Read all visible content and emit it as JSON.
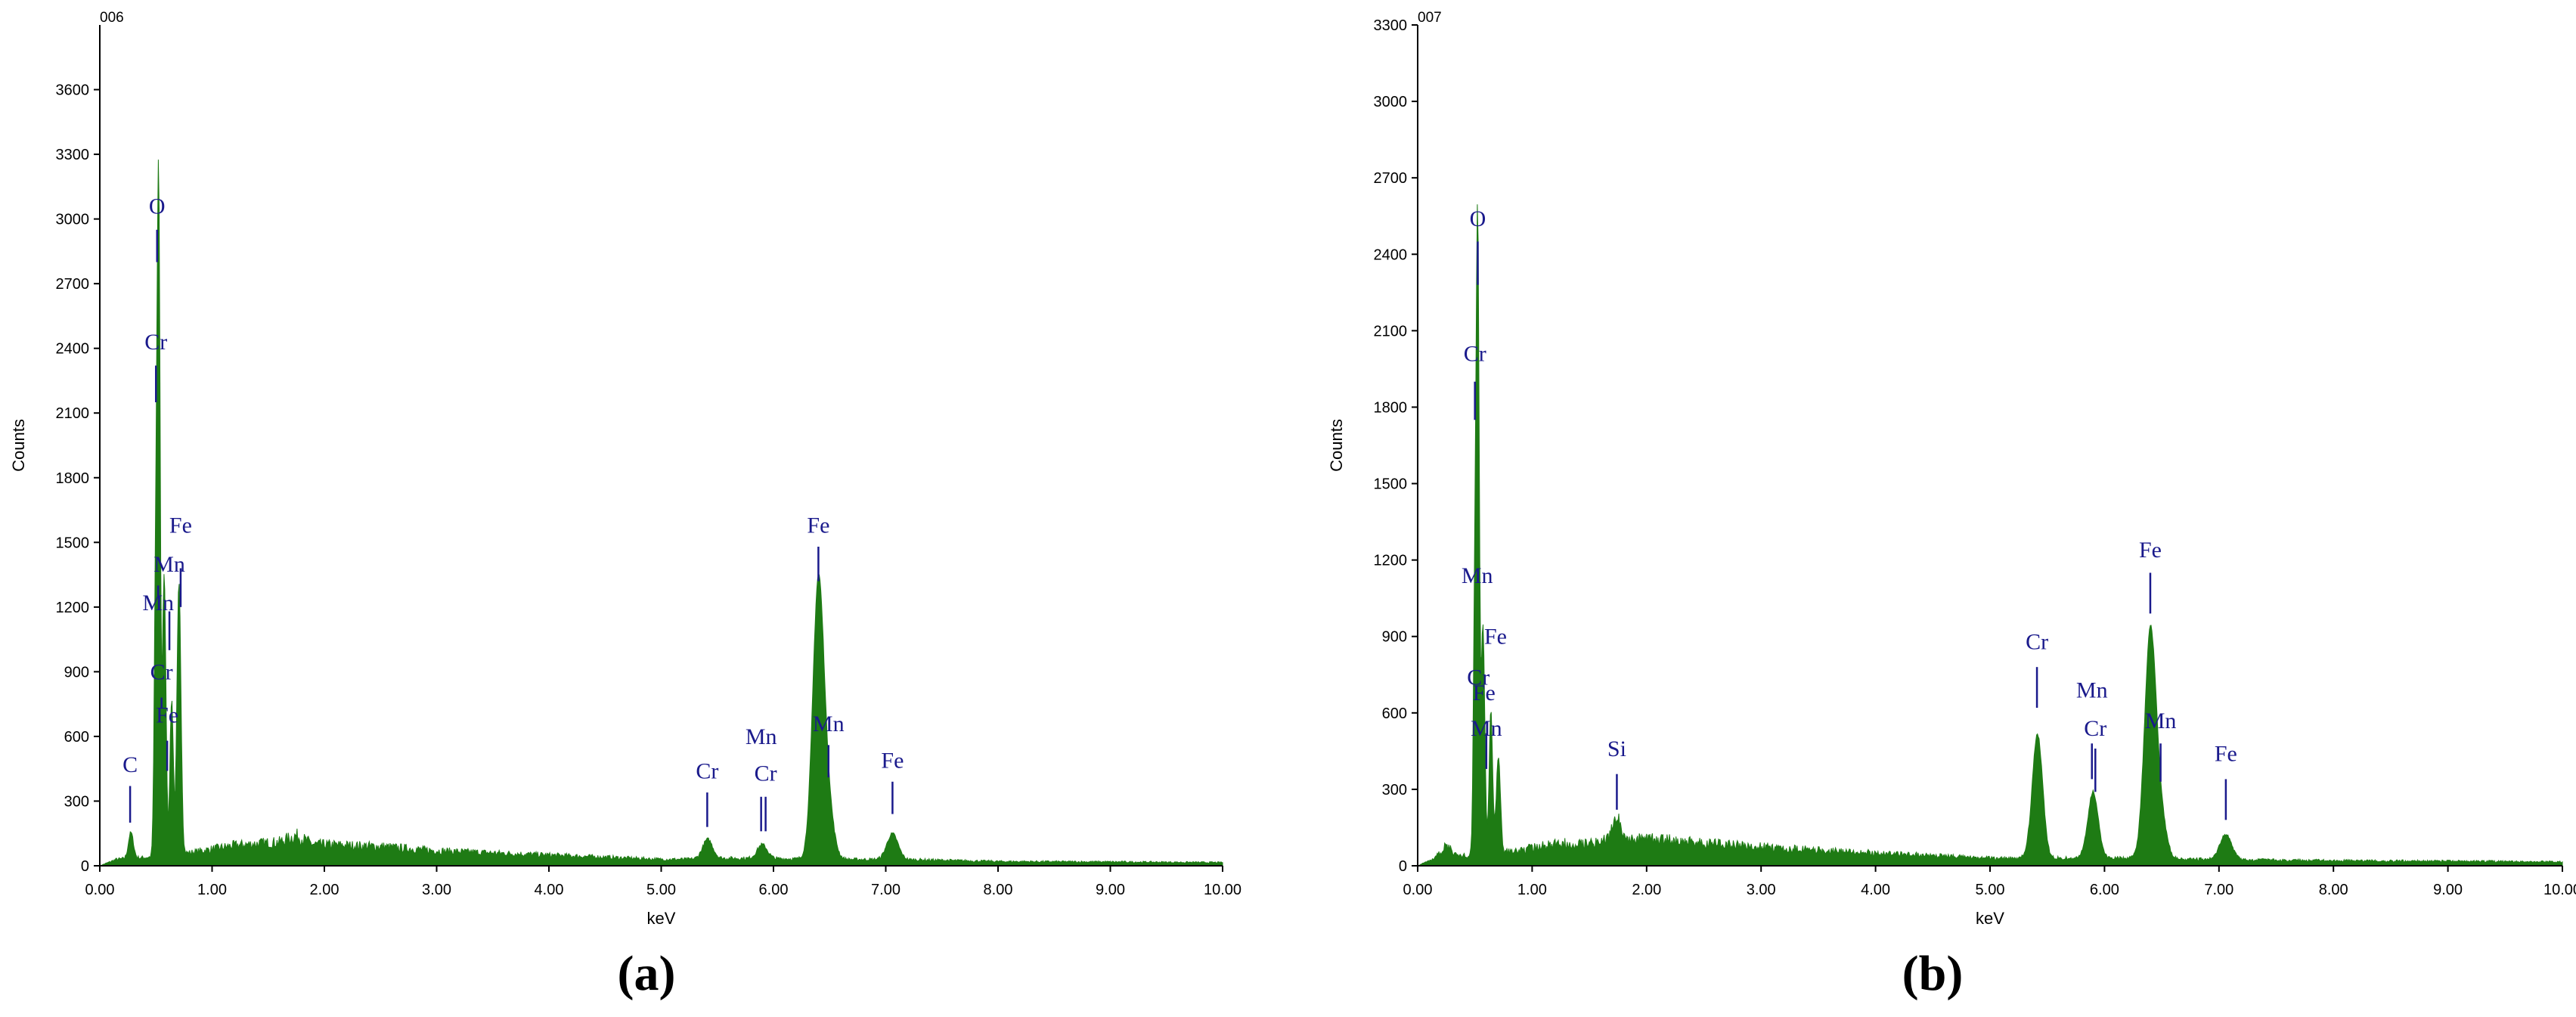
{
  "chart_data": [
    {
      "type": "area",
      "panel_label": "(a)",
      "spectrum_id": "006",
      "xlabel": "keV",
      "ylabel": "Counts",
      "xlim": [
        0,
        10
      ],
      "ylim": [
        0,
        3900
      ],
      "x_ticks": [
        "0.00",
        "1.00",
        "2.00",
        "3.00",
        "4.00",
        "5.00",
        "6.00",
        "7.00",
        "8.00",
        "9.00",
        "10.00"
      ],
      "y_ticks": [
        "0",
        "300",
        "600",
        "900",
        "1200",
        "1500",
        "1800",
        "2100",
        "2400",
        "2700",
        "3000",
        "3300",
        "3600"
      ],
      "color": "#1e7b14",
      "background": [
        [
          0.0,
          0
        ],
        [
          0.15,
          30
        ],
        [
          0.3,
          35
        ],
        [
          0.45,
          40
        ],
        [
          0.8,
          60
        ],
        [
          1.2,
          95
        ],
        [
          1.6,
          110
        ],
        [
          1.75,
          140
        ],
        [
          1.9,
          100
        ],
        [
          2.5,
          90
        ],
        [
          3.0,
          70
        ],
        [
          3.5,
          60
        ],
        [
          4.0,
          50
        ],
        [
          4.5,
          40
        ],
        [
          5.0,
          30
        ],
        [
          5.2,
          30
        ],
        [
          5.6,
          35
        ],
        [
          6.2,
          32
        ],
        [
          6.6,
          30
        ],
        [
          7.3,
          28
        ],
        [
          8.0,
          20
        ],
        [
          9.0,
          18
        ],
        [
          10.0,
          15
        ]
      ],
      "peaks": [
        {
          "x": 0.277,
          "y": 120,
          "w": 0.022
        },
        {
          "x": 0.5,
          "y": 1400,
          "w": 0.014
        },
        {
          "x": 0.525,
          "y": 2900,
          "w": 0.013
        },
        {
          "x": 0.573,
          "y": 1300,
          "w": 0.016
        },
        {
          "x": 0.64,
          "y": 720,
          "w": 0.015
        },
        {
          "x": 0.705,
          "y": 1250,
          "w": 0.018
        },
        {
          "x": 5.414,
          "y": 90,
          "w": 0.045
        },
        {
          "x": 5.9,
          "y": 65,
          "w": 0.045
        },
        {
          "x": 6.4,
          "y": 1280,
          "w": 0.05
        },
        {
          "x": 6.49,
          "y": 200,
          "w": 0.05
        },
        {
          "x": 7.06,
          "y": 120,
          "w": 0.05
        }
      ],
      "annotations": [
        {
          "label": "O",
          "x": 0.51,
          "tick_y": [
            2800,
            2950
          ],
          "text_y": 3060
        },
        {
          "label": "Cr",
          "x": 0.5,
          "tick_y": [
            2150,
            2320
          ],
          "text_y": 2430
        },
        {
          "label": "Fe",
          "x": 0.72,
          "tick_y": [
            1200,
            1380
          ],
          "text_y": 1580
        },
        {
          "label": "Mn",
          "x": 0.62,
          "tick_y": [
            1000,
            1180
          ],
          "text_y": 1400
        },
        {
          "label": "Mn",
          "x": 0.52,
          "tick_y": [
            1250,
            1300
          ],
          "text_y": 1220
        },
        {
          "label": "Cr",
          "x": 0.55,
          "tick_y": [
            730,
            780
          ],
          "text_y": 900
        },
        {
          "label": "Fe",
          "x": 0.6,
          "tick_y": [
            440,
            580
          ],
          "text_y": 700
        },
        {
          "label": "C",
          "x": 0.27,
          "tick_y": [
            200,
            370
          ],
          "text_y": 470
        },
        {
          "label": "Cr",
          "x": 5.41,
          "tick_y": [
            180,
            340
          ],
          "text_y": 440
        },
        {
          "label": "Cr",
          "x": 5.93,
          "tick_y": [
            160,
            320
          ],
          "text_y": 430
        },
        {
          "label": "Mn",
          "x": 5.89,
          "tick_y": [
            160,
            320
          ],
          "text_y": 600
        },
        {
          "label": "Fe",
          "x": 6.4,
          "tick_y": [
            1320,
            1480
          ],
          "text_y": 1580
        },
        {
          "label": "Mn",
          "x": 6.49,
          "tick_y": [
            410,
            560
          ],
          "text_y": 660
        },
        {
          "label": "Fe",
          "x": 7.06,
          "tick_y": [
            240,
            390
          ],
          "text_y": 490
        }
      ]
    },
    {
      "type": "area",
      "panel_label": "(b)",
      "spectrum_id": "007",
      "xlabel": "keV",
      "ylabel": "Counts",
      "xlim": [
        0,
        10
      ],
      "ylim": [
        0,
        3300
      ],
      "x_ticks": [
        "0.00",
        "1.00",
        "2.00",
        "3.00",
        "4.00",
        "5.00",
        "6.00",
        "7.00",
        "8.00",
        "9.00",
        "10.00"
      ],
      "y_ticks": [
        "0",
        "300",
        "600",
        "900",
        "1200",
        "1500",
        "1800",
        "2100",
        "2400",
        "2700",
        "3000",
        "3300"
      ],
      "color": "#1e7b14",
      "background": [
        [
          0.0,
          0
        ],
        [
          0.15,
          30
        ],
        [
          0.25,
          80
        ],
        [
          0.35,
          40
        ],
        [
          0.45,
          40
        ],
        [
          0.8,
          55
        ],
        [
          1.2,
          85
        ],
        [
          1.6,
          95
        ],
        [
          2.0,
          105
        ],
        [
          2.5,
          90
        ],
        [
          3.0,
          75
        ],
        [
          3.5,
          60
        ],
        [
          4.0,
          50
        ],
        [
          4.5,
          40
        ],
        [
          5.0,
          30
        ],
        [
          5.2,
          30
        ],
        [
          6.0,
          30
        ],
        [
          7.0,
          25
        ],
        [
          8.0,
          20
        ],
        [
          9.0,
          18
        ],
        [
          10.0,
          15
        ]
      ],
      "peaks": [
        {
          "x": 0.5,
          "y": 1000,
          "w": 0.013
        },
        {
          "x": 0.525,
          "y": 2380,
          "w": 0.013
        },
        {
          "x": 0.57,
          "y": 900,
          "w": 0.016
        },
        {
          "x": 0.64,
          "y": 560,
          "w": 0.015
        },
        {
          "x": 0.705,
          "y": 380,
          "w": 0.018
        },
        {
          "x": 1.74,
          "y": 90,
          "w": 0.04
        },
        {
          "x": 5.414,
          "y": 490,
          "w": 0.045
        },
        {
          "x": 5.9,
          "y": 260,
          "w": 0.045
        },
        {
          "x": 6.4,
          "y": 880,
          "w": 0.05
        },
        {
          "x": 6.49,
          "y": 150,
          "w": 0.05
        },
        {
          "x": 7.06,
          "y": 100,
          "w": 0.05
        }
      ],
      "annotations": [
        {
          "label": "O",
          "x": 0.525,
          "tick_y": [
            2280,
            2450
          ],
          "text_y": 2540
        },
        {
          "label": "Cr",
          "x": 0.5,
          "tick_y": [
            1750,
            1900
          ],
          "text_y": 2010
        },
        {
          "label": "Mn",
          "x": 0.52,
          "tick_y": [
            1180,
            1180
          ],
          "text_y": 1140
        },
        {
          "label": "Fe",
          "x": 0.68,
          "tick_y": [
            900,
            900
          ],
          "text_y": 900
        },
        {
          "label": "Cr",
          "x": 0.53,
          "tick_y": [
            700,
            700
          ],
          "text_y": 740
        },
        {
          "label": "Fe",
          "x": 0.58,
          "tick_y": [
            690,
            690
          ],
          "text_y": 680
        },
        {
          "label": "Mn",
          "x": 0.6,
          "tick_y": [
            380,
            520
          ],
          "text_y": 540
        },
        {
          "label": "Si",
          "x": 1.74,
          "tick_y": [
            220,
            360
          ],
          "text_y": 460
        },
        {
          "label": "Cr",
          "x": 5.41,
          "tick_y": [
            620,
            780
          ],
          "text_y": 880
        },
        {
          "label": "Cr",
          "x": 5.92,
          "tick_y": [
            290,
            460
          ],
          "text_y": 540
        },
        {
          "label": "Mn",
          "x": 5.89,
          "tick_y": [
            340,
            480
          ],
          "text_y": 690
        },
        {
          "label": "Fe",
          "x": 6.4,
          "tick_y": [
            990,
            1150
          ],
          "text_y": 1240
        },
        {
          "label": "Mn",
          "x": 6.49,
          "tick_y": [
            330,
            480
          ],
          "text_y": 570
        },
        {
          "label": "Fe",
          "x": 7.06,
          "tick_y": [
            180,
            340
          ],
          "text_y": 440
        }
      ]
    }
  ]
}
